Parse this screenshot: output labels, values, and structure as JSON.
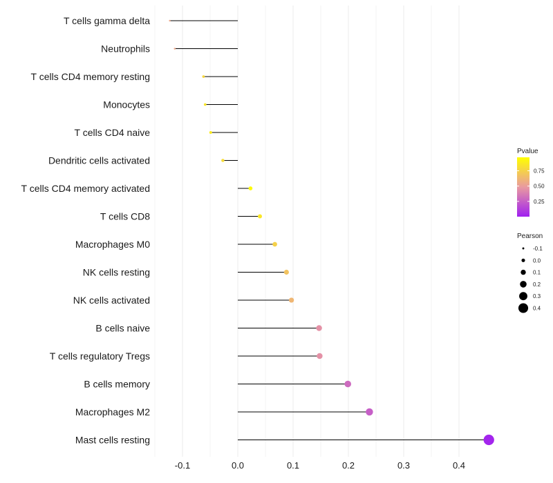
{
  "chart_data": {
    "type": "lollipop",
    "title": "",
    "xlabel": "",
    "ylabel": "",
    "xlim": [
      -0.15,
      0.47
    ],
    "x_ticks": [
      -0.1,
      0.0,
      0.1,
      0.2,
      0.3,
      0.4
    ],
    "x_tick_labels": [
      "-0.1",
      "0.0",
      "0.1",
      "0.2",
      "0.3",
      "0.4"
    ],
    "grid": true,
    "categories": [
      "T cells gamma delta",
      "Neutrophils",
      "T cells CD4 memory resting",
      "Monocytes",
      "T cells CD4 naive",
      "Dendritic cells activated",
      "T cells CD4 memory activated",
      "T cells CD8",
      "Macrophages M0",
      "NK cells resting",
      "NK cells activated",
      "B cells naive",
      "T cells regulatory  Tregs",
      "B cells memory",
      "Macrophages M2",
      "Mast cells resting"
    ],
    "pearson": [
      -0.123,
      -0.114,
      -0.062,
      -0.059,
      -0.049,
      -0.027,
      0.023,
      0.04,
      0.067,
      0.088,
      0.097,
      0.147,
      0.148,
      0.199,
      0.238,
      0.454
    ],
    "pvalue": [
      0.55,
      0.55,
      0.78,
      0.85,
      0.88,
      0.8,
      0.95,
      0.85,
      0.75,
      0.68,
      0.62,
      0.45,
      0.45,
      0.3,
      0.25,
      0.02
    ],
    "color_legend": {
      "title": "Pvalue",
      "ticks": [
        "0.75",
        "0.50",
        "0.25"
      ],
      "tick_values": [
        0.75,
        0.5,
        0.25
      ],
      "range": [
        0.0,
        0.97
      ],
      "low_color": "#a020f0",
      "mid_color": "#e99aa0",
      "high_color": "#ffff00"
    },
    "size_legend": {
      "title": "Pearson",
      "values": [
        -0.1,
        0.0,
        0.1,
        0.2,
        0.3,
        0.4
      ],
      "labels": [
        "-0.1",
        "0.0",
        "0.1",
        "0.2",
        "0.3",
        "0.4"
      ]
    },
    "colors": {
      "stem": "#000000",
      "grid": "#ebebeb"
    }
  }
}
